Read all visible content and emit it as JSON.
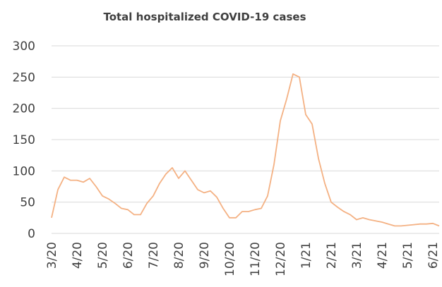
{
  "chart_data": {
    "type": "line",
    "title": "Total hospitalized COVID-19 cases",
    "categories": [
      "3/20",
      null,
      null,
      null,
      "4/20",
      null,
      null,
      null,
      "5/20",
      null,
      null,
      null,
      "6/20",
      null,
      null,
      null,
      "7/20",
      null,
      null,
      null,
      "8/20",
      null,
      null,
      null,
      "9/20",
      null,
      null,
      null,
      "10/20",
      null,
      null,
      null,
      "11/20",
      null,
      null,
      null,
      "12/20",
      null,
      null,
      null,
      "1/21",
      null,
      null,
      null,
      "2/21",
      null,
      null,
      null,
      "3/21",
      null,
      null,
      null,
      "4/21",
      null,
      null,
      null,
      "5/21",
      null,
      null,
      null,
      "6/21",
      null
    ],
    "series": [
      {
        "name": "Total hospitalized",
        "color": "#f4b183",
        "values": [
          25,
          70,
          90,
          85,
          85,
          82,
          88,
          75,
          60,
          55,
          48,
          40,
          38,
          30,
          30,
          48,
          60,
          80,
          95,
          105,
          88,
          100,
          85,
          70,
          65,
          68,
          58,
          40,
          25,
          25,
          35,
          35,
          38,
          40,
          60,
          110,
          180,
          215,
          255,
          250,
          190,
          175,
          120,
          80,
          50,
          42,
          35,
          30,
          22,
          25,
          22,
          20,
          18,
          15,
          12,
          12,
          13,
          14,
          15,
          15,
          16,
          12
        ]
      }
    ],
    "ylim": [
      0,
      300
    ],
    "yticks": [
      0,
      50,
      100,
      150,
      200,
      250,
      300
    ],
    "grid": true
  }
}
